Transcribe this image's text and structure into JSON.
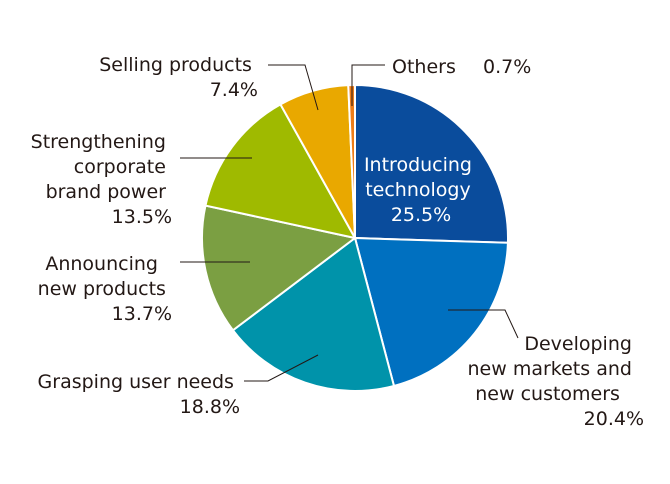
{
  "chart_data": {
    "type": "pie",
    "title": "",
    "start": "top",
    "direction": "clockwise",
    "slices": [
      {
        "label": [
          "Introducing",
          "technology"
        ],
        "value_label": "25.5%",
        "value": 25.5,
        "color": "#0a4c9c",
        "text_color": "#ffffff"
      },
      {
        "label": [
          "Developing",
          "new markets and",
          "new customers"
        ],
        "value_label": "20.4%",
        "value": 20.4,
        "color": "#0070c0"
      },
      {
        "label": [
          "Grasping user needs"
        ],
        "value_label": "18.8%",
        "value": 18.8,
        "color": "#0093aa"
      },
      {
        "label": [
          "Announcing",
          "new products"
        ],
        "value_label": "13.7%",
        "value": 13.7,
        "color": "#7b9f42"
      },
      {
        "label": [
          "Strengthening",
          "corporate",
          "brand power"
        ],
        "value_label": "13.5%",
        "value": 13.5,
        "color": "#9fba00"
      },
      {
        "label": [
          "Selling products"
        ],
        "value_label": "7.4%",
        "value": 7.4,
        "color": "#e9a800"
      },
      {
        "label": [
          "Others"
        ],
        "value_label": "0.7%",
        "value": 0.7,
        "color": "#ee7d18"
      }
    ]
  }
}
